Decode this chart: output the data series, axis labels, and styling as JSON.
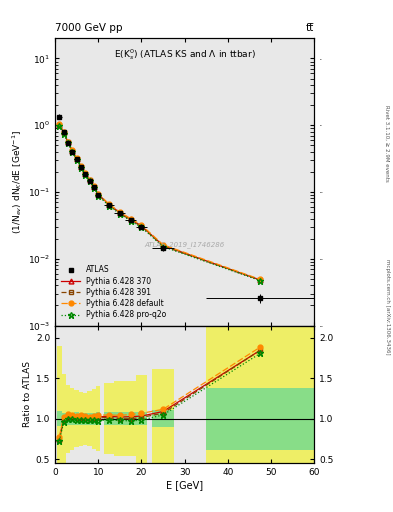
{
  "title_top": "7000 GeV pp",
  "title_top_right": "tt̅",
  "plot_title": "E(K$_s^0$) (ATLAS KS and Λ in ttbar)",
  "xlabel": "E [GeV]",
  "ylabel": "(1/N$_{ev}$) dN$_K$/dE [GeV$^{-1}$]",
  "ratio_ylabel": "Ratio to ATLAS",
  "watermark": "ATLAS_2019_I1746286",
  "right_label_top": "Rivet 3.1.10, ≥ 2.9M events",
  "right_label_bot": "mcplots.cern.ch [arXiv:1306.3436]",
  "atlas_x": [
    1.0,
    2.0,
    3.0,
    4.0,
    5.0,
    6.0,
    7.0,
    8.0,
    9.0,
    10.0,
    12.5,
    15.0,
    17.5,
    20.0,
    25.0,
    47.5
  ],
  "atlas_y": [
    1.35,
    0.78,
    0.54,
    0.4,
    0.31,
    0.235,
    0.185,
    0.148,
    0.118,
    0.09,
    0.063,
    0.048,
    0.038,
    0.03,
    0.0145,
    0.0026
  ],
  "atlas_xerr": [
    0.5,
    0.5,
    0.5,
    0.5,
    0.5,
    0.5,
    0.5,
    0.5,
    0.5,
    0.5,
    1.25,
    1.25,
    1.25,
    1.25,
    2.5,
    12.5
  ],
  "atlas_yerr_low": [
    0.12,
    0.06,
    0.04,
    0.03,
    0.025,
    0.018,
    0.014,
    0.011,
    0.009,
    0.007,
    0.005,
    0.004,
    0.003,
    0.0025,
    0.0015,
    0.0004
  ],
  "atlas_yerr_high": [
    0.12,
    0.06,
    0.04,
    0.03,
    0.025,
    0.018,
    0.014,
    0.011,
    0.009,
    0.007,
    0.005,
    0.004,
    0.003,
    0.0025,
    0.0015,
    0.0004
  ],
  "py370_x": [
    1.0,
    2.0,
    3.0,
    4.0,
    5.0,
    6.0,
    7.0,
    8.0,
    9.0,
    10.0,
    12.5,
    15.0,
    17.5,
    20.0,
    25.0,
    47.5
  ],
  "py370_y": [
    1.02,
    0.78,
    0.56,
    0.415,
    0.315,
    0.24,
    0.188,
    0.15,
    0.12,
    0.092,
    0.065,
    0.049,
    0.039,
    0.031,
    0.0158,
    0.0048
  ],
  "py391_x": [
    1.0,
    2.0,
    3.0,
    4.0,
    5.0,
    6.0,
    7.0,
    8.0,
    9.0,
    10.0,
    12.5,
    15.0,
    17.5,
    20.0,
    25.0,
    47.5
  ],
  "py391_y": [
    1.0,
    0.77,
    0.555,
    0.412,
    0.312,
    0.238,
    0.186,
    0.149,
    0.119,
    0.091,
    0.064,
    0.048,
    0.038,
    0.0305,
    0.0155,
    0.0048
  ],
  "pydef_x": [
    1.0,
    2.0,
    3.0,
    4.0,
    5.0,
    6.0,
    7.0,
    8.0,
    9.0,
    10.0,
    12.5,
    15.0,
    17.5,
    20.0,
    25.0,
    47.5
  ],
  "pydef_y": [
    1.05,
    0.8,
    0.57,
    0.42,
    0.32,
    0.245,
    0.192,
    0.152,
    0.122,
    0.094,
    0.066,
    0.05,
    0.04,
    0.032,
    0.0162,
    0.0049
  ],
  "pyproq2o_x": [
    1.0,
    2.0,
    3.0,
    4.0,
    5.0,
    6.0,
    7.0,
    8.0,
    9.0,
    10.0,
    12.5,
    15.0,
    17.5,
    20.0,
    25.0,
    47.5
  ],
  "pyproq2o_y": [
    0.98,
    0.75,
    0.54,
    0.4,
    0.305,
    0.232,
    0.182,
    0.145,
    0.116,
    0.088,
    0.062,
    0.047,
    0.037,
    0.0295,
    0.0152,
    0.0047
  ],
  "ratio_atlas_x": [
    1.0,
    2.0,
    3.0,
    4.0,
    5.0,
    6.0,
    7.0,
    8.0,
    9.0,
    10.0,
    12.5,
    15.0,
    17.5,
    20.0,
    25.0,
    47.5
  ],
  "ratio_atlas_xlo": [
    0.5,
    1.5,
    2.5,
    3.5,
    4.5,
    5.5,
    6.5,
    7.5,
    8.5,
    9.5,
    11.25,
    13.75,
    16.25,
    18.75,
    22.5,
    35.0
  ],
  "ratio_atlas_xhi": [
    1.5,
    2.5,
    3.5,
    4.5,
    5.5,
    6.5,
    7.5,
    8.5,
    9.5,
    10.5,
    13.75,
    16.25,
    18.75,
    21.25,
    27.5,
    60.0
  ],
  "ratio_atlas_yerr_inner": [
    0.09,
    0.077,
    0.074,
    0.075,
    0.081,
    0.077,
    0.076,
    0.074,
    0.076,
    0.078,
    0.079,
    0.083,
    0.079,
    0.083,
    0.103,
    0.385
  ],
  "ratio_atlas_yerr_outer": [
    0.9,
    0.55,
    0.42,
    0.38,
    0.35,
    0.33,
    0.32,
    0.34,
    0.37,
    0.4,
    0.44,
    0.46,
    0.46,
    0.54,
    0.62,
    1.4
  ],
  "ratio_py370": [
    0.756,
    1.0,
    1.037,
    1.038,
    1.016,
    1.021,
    1.016,
    1.014,
    1.017,
    1.022,
    1.032,
    1.021,
    1.026,
    1.033,
    1.09,
    1.846
  ],
  "ratio_py391": [
    0.741,
    0.987,
    1.028,
    1.03,
    1.006,
    1.013,
    1.005,
    1.007,
    1.008,
    1.011,
    1.016,
    1.0,
    1.0,
    1.017,
    1.069,
    1.846
  ],
  "ratio_pydef": [
    0.778,
    1.026,
    1.056,
    1.05,
    1.032,
    1.043,
    1.038,
    1.027,
    1.034,
    1.044,
    1.048,
    1.042,
    1.053,
    1.067,
    1.117,
    1.885
  ],
  "ratio_pyproq2o": [
    0.726,
    0.962,
    1.0,
    1.0,
    0.984,
    0.987,
    0.984,
    0.98,
    0.983,
    0.978,
    0.984,
    0.979,
    0.974,
    0.983,
    1.048,
    1.808
  ],
  "color_py370": "#cc0000",
  "color_py391": "#884400",
  "color_pydef": "#ff8800",
  "color_pyproq2o": "#008800",
  "xlim_main": [
    0,
    60
  ],
  "ylim_main_log": [
    0.001,
    20
  ],
  "xlim_ratio": [
    0,
    60
  ],
  "ylim_ratio": [
    0.45,
    2.15
  ],
  "inner_band_color": "#88dd88",
  "outer_band_color": "#eeee66",
  "bg_color": "#e8e8e8"
}
